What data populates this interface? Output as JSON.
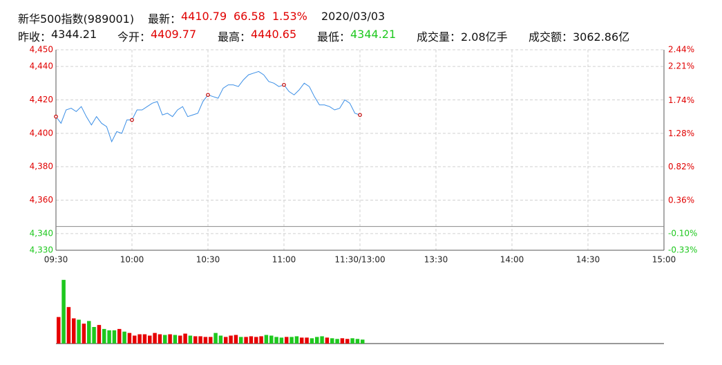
{
  "header": {
    "title": "新华500指数(989001)",
    "latest_label": "最新：",
    "latest": 4410.79,
    "change": 66.58,
    "change_pct": "1.53%",
    "date": "2020/03/03",
    "prev_close_label": "昨收：",
    "prev_close": 4344.21,
    "open_label": "今开：",
    "open": 4409.77,
    "high_label": "最高：",
    "high": 4440.65,
    "low_label": "最低：",
    "low": 4344.21,
    "volume_label": "成交量：",
    "volume": "2.08亿手",
    "amount_label": "成交额：",
    "amount": "3062.86亿"
  },
  "chart_data": [
    {
      "type": "line",
      "x": [
        0,
        2,
        4,
        6,
        8,
        10,
        12,
        14,
        16,
        18,
        20,
        22,
        24,
        26,
        28,
        30,
        32,
        34,
        36,
        38,
        40,
        42,
        44,
        46,
        48,
        50,
        52,
        54,
        56,
        58,
        60,
        62,
        64,
        66,
        68,
        70,
        72,
        74,
        76,
        78,
        80,
        82,
        84,
        86,
        88,
        90,
        92,
        94,
        96,
        98,
        100,
        102,
        104,
        106,
        108,
        110,
        112,
        114,
        116,
        118,
        120
      ],
      "xlim": [
        0,
        240
      ],
      "xticks": [
        {
          "value": 0,
          "label": "09:30"
        },
        {
          "value": 30,
          "label": "10:00"
        },
        {
          "value": 60,
          "label": "10:30"
        },
        {
          "value": 90,
          "label": "11:00"
        },
        {
          "value": 120,
          "label": "11:30/13:00"
        },
        {
          "value": 150,
          "label": "13:30"
        },
        {
          "value": 180,
          "label": "14:00"
        },
        {
          "value": 210,
          "label": "14:30"
        },
        {
          "value": 240,
          "label": "15:00"
        }
      ],
      "ylim": [
        4330,
        4450
      ],
      "yticks": [
        {
          "value": 4450,
          "label": "4,450"
        },
        {
          "value": 4440,
          "label": "4,440"
        },
        {
          "value": 4420,
          "label": "4,420"
        },
        {
          "value": 4400,
          "label": "4,400"
        },
        {
          "value": 4380,
          "label": "4,380"
        },
        {
          "value": 4360,
          "label": "4,360"
        },
        {
          "value": 4340,
          "label": "4,340"
        },
        {
          "value": 4330,
          "label": "4,330"
        }
      ],
      "y2lim": [
        -0.33,
        2.44
      ],
      "y2ticks": [
        {
          "value": 2.44,
          "label": "2.44%"
        },
        {
          "value": 2.21,
          "label": "2.21%"
        },
        {
          "value": 1.74,
          "label": "1.74%"
        },
        {
          "value": 1.28,
          "label": "1.28%"
        },
        {
          "value": 0.82,
          "label": "0.82%"
        },
        {
          "value": 0.36,
          "label": "0.36%"
        },
        {
          "value": -0.1,
          "label": "-0.10%"
        },
        {
          "value": -0.33,
          "label": "-0.33%"
        }
      ],
      "grid": true,
      "series": [
        {
          "color": "#3a8ee6",
          "values": [
            4410,
            4406,
            4414,
            4415,
            4413,
            4416,
            4410,
            4405,
            4410,
            4406,
            4404,
            4395,
            4401,
            4400,
            4408,
            4408,
            4414,
            4414,
            4416,
            4418,
            4419,
            4411,
            4412,
            4410,
            4414,
            4416,
            4410,
            4411,
            4412,
            4419,
            4423,
            4422,
            4421,
            4427,
            4429,
            4429,
            4428,
            4432,
            4435,
            4436,
            4437,
            4435,
            4431,
            4430,
            4428,
            4429,
            4425,
            4423,
            4426,
            4430,
            4428,
            4422,
            4417,
            4417,
            4416,
            4414,
            4415,
            4420,
            4418,
            4412,
            4411
          ]
        }
      ]
    },
    {
      "type": "bar",
      "x": [
        0,
        2,
        4,
        6,
        8,
        10,
        12,
        14,
        16,
        18,
        20,
        22,
        24,
        26,
        28,
        30,
        32,
        34,
        36,
        38,
        40,
        42,
        44,
        46,
        48,
        50,
        52,
        54,
        56,
        58,
        60,
        62,
        64,
        66,
        68,
        70,
        72,
        74,
        76,
        78,
        80,
        82,
        84,
        86,
        88,
        90,
        92,
        94,
        96,
        98,
        100,
        102,
        104,
        106,
        108,
        110,
        112,
        114,
        116,
        118,
        120
      ],
      "values": [
        40,
        96,
        55,
        38,
        36,
        30,
        34,
        25,
        28,
        22,
        20,
        20,
        22,
        18,
        16,
        12,
        14,
        14,
        12,
        16,
        14,
        13,
        14,
        13,
        12,
        15,
        12,
        11,
        11,
        10,
        10,
        16,
        12,
        10,
        12,
        13,
        10,
        10,
        11,
        10,
        11,
        13,
        12,
        10,
        9,
        10,
        10,
        11,
        9,
        9,
        8,
        10,
        11,
        9,
        8,
        7,
        8,
        7,
        8,
        7,
        6
      ],
      "ylim": [
        0,
        100
      ],
      "up_color": "#e60000",
      "down_color": "#1ec81e"
    }
  ]
}
